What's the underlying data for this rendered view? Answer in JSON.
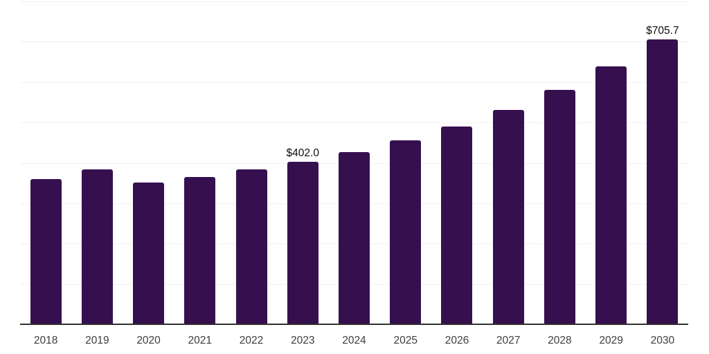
{
  "chart_data": {
    "type": "bar",
    "title": "",
    "xlabel": "",
    "ylabel": "",
    "categories": [
      "2018",
      "2019",
      "2020",
      "2021",
      "2022",
      "2023",
      "2024",
      "2025",
      "2026",
      "2027",
      "2028",
      "2029",
      "2030"
    ],
    "values": [
      360,
      384,
      352,
      365,
      383,
      402.0,
      427,
      456,
      490,
      531,
      580,
      639,
      705.7
    ],
    "value_labels": [
      "",
      "",
      "",
      "",
      "",
      "$402.0",
      "",
      "",
      "",
      "",
      "",
      "",
      "$705.7"
    ],
    "ylim": [
      0,
      800
    ],
    "gridline_step": 100,
    "grid": "horizontal-only",
    "legend_position": "none",
    "colors": {
      "bar": "#36104E",
      "axis_line": "#303030",
      "gridline": "#f1f1f1",
      "tick_label": "#3d3d3d",
      "value_label": "#0d0d0d",
      "background": "#ffffff"
    }
  }
}
